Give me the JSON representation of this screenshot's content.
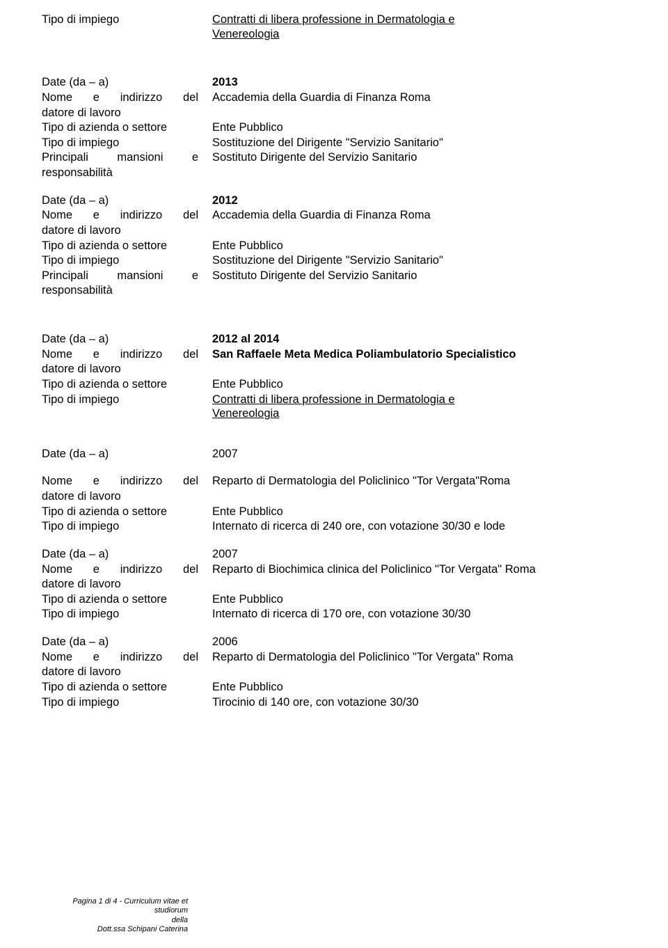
{
  "labels": {
    "tipo_impiego": "Tipo di impiego",
    "date": "Date (da – a)",
    "nome_indirizzo": "Nome e indirizzo del datore di lavoro",
    "nome_indirizzo_l1": "Nome e indirizzo del",
    "nome_indirizzo_l2": "datore di lavoro",
    "tipo_azienda": "Tipo di azienda o settore",
    "principali": "Principali mansioni e responsabilità",
    "principali_l1": "Principali mansioni e",
    "principali_l2": "responsabilità"
  },
  "top": {
    "impiego_l1": "Contratti di libera professione in Dermatologia e",
    "impiego_l2": "Venereologia"
  },
  "e1": {
    "date": "2013",
    "nome": "Accademia della Guardia di Finanza Roma",
    "azienda": "Ente Pubblico",
    "impiego": "Sostituzione del Dirigente \"Servizio Sanitario\"",
    "mansioni": "Sostituto Dirigente del Servizio Sanitario"
  },
  "e2": {
    "date": "2012",
    "nome": "Accademia della Guardia di Finanza Roma",
    "azienda": "Ente Pubblico",
    "impiego": "Sostituzione del Dirigente \"Servizio Sanitario\"",
    "mansioni": "Sostituto Dirigente del Servizio Sanitario"
  },
  "e3": {
    "date": "2012 al 2014",
    "nome": "San Raffaele Meta Medica Poliambulatorio Specialistico",
    "azienda": "Ente Pubblico",
    "impiego_l1": "Contratti di libera professione in Dermatologia e",
    "impiego_l2": "Venereologia"
  },
  "e4": {
    "date": "2007",
    "nome": "Reparto di Dermatologia del Policlinico \"Tor Vergata\"Roma",
    "azienda": "Ente Pubblico",
    "impiego": "Internato di ricerca  di 240 ore, con votazione 30/30 e lode"
  },
  "e5": {
    "date": "2007",
    "nome": "Reparto di Biochimica clinica del Policlinico \"Tor Vergata\" Roma",
    "azienda": "Ente Pubblico",
    "impiego": "Internato di ricerca  di 170 ore, con votazione 30/30"
  },
  "e6": {
    "date": "2006",
    "nome": "Reparto di Dermatologia del Policlinico \"Tor Vergata\" Roma",
    "azienda": "Ente Pubblico",
    "impiego": "Tirocinio di 140 ore, con votazione 30/30"
  },
  "footer": {
    "l1": "Pagina 1 di 4 - Curriculum vitae et studiorum",
    "l2": "della",
    "l3": "Dott.ssa Schipani Caterina"
  }
}
